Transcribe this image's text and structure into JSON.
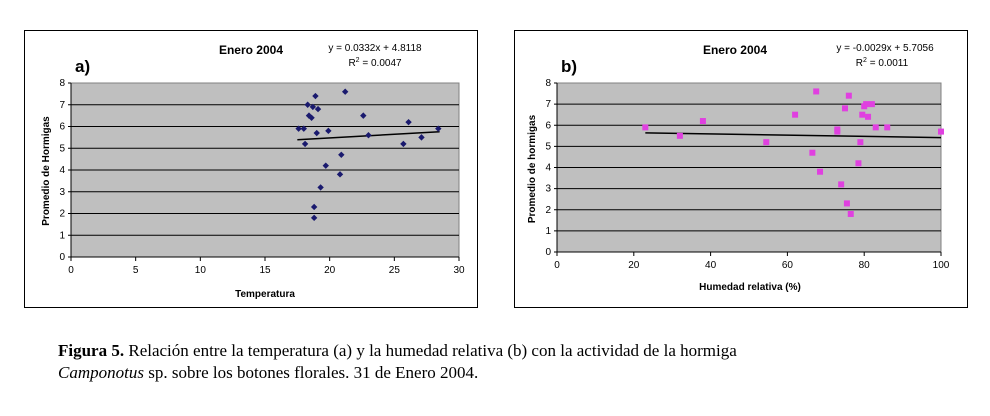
{
  "chart_data": [
    {
      "type": "scatter",
      "panel_label": "a)",
      "title": "Enero 2004",
      "equation": "y = 0.0332x + 4.8118",
      "r2_prefix": "R",
      "r2_suffix": " = 0.0047",
      "xlabel": "Temperatura",
      "ylabel": "Promedio de Hormigas",
      "xlim": [
        0,
        30
      ],
      "ylim": [
        0,
        8
      ],
      "xticks": [
        "0",
        "5",
        "10",
        "15",
        "20",
        "25",
        "30"
      ],
      "yticks": [
        "0",
        "1",
        "2",
        "3",
        "4",
        "5",
        "6",
        "7",
        "8"
      ],
      "grid": true,
      "marker": "diamond",
      "color": "#1a1a6e",
      "plot_bg": "#bfbfbf",
      "trendline": {
        "slope": 0.0332,
        "intercept": 4.8118,
        "x_range": [
          17.5,
          28.5
        ]
      },
      "points": [
        [
          17.6,
          5.9
        ],
        [
          18.0,
          5.9
        ],
        [
          18.1,
          5.2
        ],
        [
          18.3,
          7.0
        ],
        [
          18.4,
          6.5
        ],
        [
          18.6,
          6.4
        ],
        [
          18.7,
          6.9
        ],
        [
          18.8,
          1.8
        ],
        [
          18.8,
          2.3
        ],
        [
          18.9,
          7.4
        ],
        [
          19.0,
          5.7
        ],
        [
          19.1,
          6.8
        ],
        [
          19.3,
          3.2
        ],
        [
          19.7,
          4.2
        ],
        [
          19.9,
          5.8
        ],
        [
          20.8,
          3.8
        ],
        [
          20.9,
          4.7
        ],
        [
          21.2,
          7.6
        ],
        [
          22.6,
          6.5
        ],
        [
          23.0,
          5.6
        ],
        [
          25.7,
          5.2
        ],
        [
          26.1,
          6.2
        ],
        [
          27.1,
          5.5
        ],
        [
          28.4,
          5.9
        ]
      ]
    },
    {
      "type": "scatter",
      "panel_label": "b)",
      "title": "Enero 2004",
      "equation": "y = -0.0029x + 5.7056",
      "r2_prefix": "R",
      "r2_suffix": " = 0.0011",
      "xlabel": "Humedad relativa (%)",
      "ylabel": "Promedio de hormigas",
      "xlim": [
        0,
        100
      ],
      "ylim": [
        0,
        8
      ],
      "xticks": [
        "0",
        "20",
        "40",
        "60",
        "80",
        "100"
      ],
      "yticks": [
        "0",
        "1",
        "2",
        "3",
        "4",
        "5",
        "6",
        "7",
        "8"
      ],
      "grid": true,
      "marker": "square",
      "color": "#e040e0",
      "plot_bg": "#bfbfbf",
      "trendline": {
        "slope": -0.0029,
        "intercept": 5.7056,
        "x_range": [
          23,
          100
        ]
      },
      "points": [
        [
          23.0,
          5.9
        ],
        [
          32.0,
          5.5
        ],
        [
          38.0,
          6.2
        ],
        [
          54.5,
          5.2
        ],
        [
          62.0,
          6.5
        ],
        [
          66.5,
          4.7
        ],
        [
          67.5,
          7.6
        ],
        [
          68.5,
          3.8
        ],
        [
          73.0,
          5.7
        ],
        [
          73.0,
          5.8
        ],
        [
          74.0,
          3.2
        ],
        [
          75.0,
          6.8
        ],
        [
          75.5,
          2.3
        ],
        [
          76.0,
          7.4
        ],
        [
          76.5,
          1.8
        ],
        [
          78.5,
          4.2
        ],
        [
          79.0,
          5.2
        ],
        [
          79.5,
          6.5
        ],
        [
          80.0,
          6.9
        ],
        [
          80.5,
          7.0
        ],
        [
          81.0,
          6.4
        ],
        [
          82.0,
          7.0
        ],
        [
          83.0,
          5.9
        ],
        [
          86.0,
          5.9
        ],
        [
          100.0,
          5.7
        ]
      ]
    }
  ],
  "caption": {
    "label": "Figura 5.",
    "text1": " Relación entre la temperatura (a) y la humedad relativa (b) con la actividad de la hormiga",
    "italic": "Camponotus",
    "text2": " sp. sobre los botones florales. 31 de Enero 2004."
  }
}
